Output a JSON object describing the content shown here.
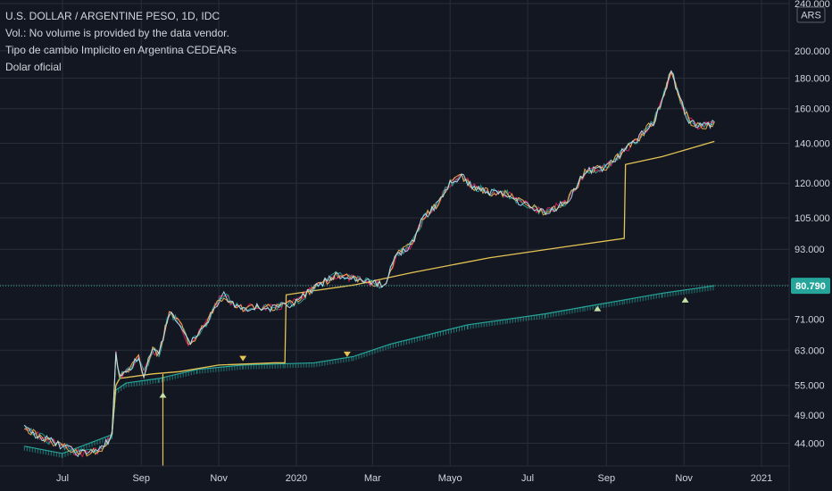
{
  "legend": {
    "title": "U.S. DOLLAR / ARGENTINE PESO, 1D, IDC",
    "volume_note": "Vol.: No volume is provided by the data vendor.",
    "indicator_1": "Tipo de cambio Implicito en Argentina CEDEARs",
    "indicator_2": "Dolar oficial"
  },
  "currency_badge": "ARS",
  "colors": {
    "background": "#131722",
    "grid": "#2a2e39",
    "text": "#d1d4dc",
    "official_line": "#e5c454",
    "implied_1": "#26a69a",
    "implied_2": "#e91e63",
    "implied_3": "#ffb74d",
    "implied_4": "#b3e5fc",
    "current_price": "#26a69a"
  },
  "chart_data": {
    "type": "line",
    "scale": "log",
    "ylim": [
      42,
      240
    ],
    "y_ticks": [
      {
        "value": 240,
        "label": "240.000"
      },
      {
        "value": 200,
        "label": "200.000"
      },
      {
        "value": 180,
        "label": "180.000"
      },
      {
        "value": 160,
        "label": "160.000"
      },
      {
        "value": 140,
        "label": "140.000"
      },
      {
        "value": 120,
        "label": "120.000"
      },
      {
        "value": 105,
        "label": "105.000"
      },
      {
        "value": 93,
        "label": "93.000"
      },
      {
        "value": 81,
        "label": "81.000"
      },
      {
        "value": 71,
        "label": "71.000"
      },
      {
        "value": 63,
        "label": "63.000"
      },
      {
        "value": 55,
        "label": "55.000"
      },
      {
        "value": 49,
        "label": "49.000"
      },
      {
        "value": 44,
        "label": "44.000"
      }
    ],
    "x_ticks": [
      {
        "label": "Jul",
        "date": "2019-07-01"
      },
      {
        "label": "Sep",
        "date": "2019-09-01"
      },
      {
        "label": "Nov",
        "date": "2019-11-01"
      },
      {
        "label": "2020",
        "date": "2020-01-01"
      },
      {
        "label": "Mar",
        "date": "2020-03-01"
      },
      {
        "label": "Mayo",
        "date": "2020-05-01"
      },
      {
        "label": "Jul",
        "date": "2020-07-01"
      },
      {
        "label": "Sep",
        "date": "2020-09-01"
      },
      {
        "label": "Nov",
        "date": "2020-11-01"
      },
      {
        "label": "2021",
        "date": "2021-01-01"
      }
    ],
    "current_price": {
      "label": "80.790",
      "value": 80.79
    },
    "series": [
      {
        "name": "Tipo de cambio Implicito en Argentina CEDEARs",
        "points": [
          [
            "2019-06-01",
            46.5
          ],
          [
            "2019-06-15",
            45.0
          ],
          [
            "2019-07-01",
            43.5
          ],
          [
            "2019-07-15",
            42.3
          ],
          [
            "2019-08-01",
            43.0
          ],
          [
            "2019-08-09",
            45.5
          ],
          [
            "2019-08-12",
            62.0
          ],
          [
            "2019-08-15",
            57.0
          ],
          [
            "2019-08-22",
            58.5
          ],
          [
            "2019-08-30",
            61.0
          ],
          [
            "2019-09-03",
            57.5
          ],
          [
            "2019-09-10",
            63.0
          ],
          [
            "2019-09-15",
            62.0
          ],
          [
            "2019-09-23",
            73.0
          ],
          [
            "2019-10-01",
            70.0
          ],
          [
            "2019-10-08",
            65.0
          ],
          [
            "2019-10-15",
            66.5
          ],
          [
            "2019-10-22",
            70.0
          ],
          [
            "2019-10-29",
            75.0
          ],
          [
            "2019-11-05",
            78.0
          ],
          [
            "2019-11-12",
            75.5
          ],
          [
            "2019-11-20",
            74.0
          ],
          [
            "2019-12-01",
            74.5
          ],
          [
            "2019-12-15",
            74.0
          ],
          [
            "2020-01-01",
            76.0
          ],
          [
            "2020-01-15",
            80.0
          ],
          [
            "2020-02-01",
            84.0
          ],
          [
            "2020-02-15",
            83.0
          ],
          [
            "2020-03-01",
            81.5
          ],
          [
            "2020-03-10",
            81.0
          ],
          [
            "2020-03-20",
            91.0
          ],
          [
            "2020-04-01",
            95.0
          ],
          [
            "2020-04-10",
            105.0
          ],
          [
            "2020-04-20",
            110.0
          ],
          [
            "2020-05-01",
            120.0
          ],
          [
            "2020-05-10",
            123.0
          ],
          [
            "2020-05-20",
            118.0
          ],
          [
            "2020-06-01",
            116.0
          ],
          [
            "2020-06-15",
            115.0
          ],
          [
            "2020-07-01",
            110.0
          ],
          [
            "2020-07-15",
            107.0
          ],
          [
            "2020-08-01",
            112.0
          ],
          [
            "2020-08-15",
            125.0
          ],
          [
            "2020-09-01",
            128.0
          ],
          [
            "2020-09-15",
            136.0
          ],
          [
            "2020-09-25",
            142.0
          ],
          [
            "2020-10-08",
            152.0
          ],
          [
            "2020-10-15",
            165.0
          ],
          [
            "2020-10-22",
            186.0
          ],
          [
            "2020-10-29",
            165.0
          ],
          [
            "2020-11-05",
            153.0
          ],
          [
            "2020-11-12",
            150.0
          ],
          [
            "2020-11-20",
            150.0
          ],
          [
            "2020-11-25",
            152.0
          ]
        ]
      },
      {
        "name": "Dolar oficial",
        "points": [
          [
            "2019-08-09",
            45.5
          ],
          [
            "2019-08-12",
            55.0
          ],
          [
            "2019-08-15",
            56.5
          ],
          [
            "2019-09-10",
            57.5
          ],
          [
            "2019-10-01",
            58.0
          ],
          [
            "2019-11-01",
            59.5
          ],
          [
            "2019-12-15",
            60.0
          ],
          [
            "2019-12-23",
            60.0
          ],
          [
            "2019-12-24",
            78.0
          ],
          [
            "2020-01-10",
            79.0
          ],
          [
            "2020-02-15",
            81.0
          ],
          [
            "2020-04-01",
            85.0
          ],
          [
            "2020-06-01",
            90.0
          ],
          [
            "2020-08-01",
            94.0
          ],
          [
            "2020-09-15",
            97.0
          ],
          [
            "2020-09-16",
            129.0
          ],
          [
            "2020-10-15",
            133.0
          ],
          [
            "2020-11-25",
            141.0
          ]
        ]
      },
      {
        "name": "U.S. DOLLAR / ARGENTINE PESO",
        "points": [
          [
            "2019-06-01",
            43.5
          ],
          [
            "2019-07-01",
            42.3
          ],
          [
            "2019-08-09",
            45.5
          ],
          [
            "2019-08-12",
            54.0
          ],
          [
            "2019-08-20",
            55.5
          ],
          [
            "2019-09-15",
            56.5
          ],
          [
            "2019-10-15",
            58.5
          ],
          [
            "2019-11-20",
            59.5
          ],
          [
            "2019-12-23",
            59.8
          ],
          [
            "2020-01-15",
            60.0
          ],
          [
            "2020-02-15",
            61.5
          ],
          [
            "2020-03-15",
            64.5
          ],
          [
            "2020-04-15",
            67.0
          ],
          [
            "2020-05-15",
            69.5
          ],
          [
            "2020-06-15",
            71.0
          ],
          [
            "2020-07-15",
            72.5
          ],
          [
            "2020-08-15",
            74.5
          ],
          [
            "2020-09-15",
            76.5
          ],
          [
            "2020-10-15",
            78.5
          ],
          [
            "2020-11-25",
            80.8
          ]
        ]
      }
    ],
    "markers": [
      {
        "shape": "down",
        "color": "#e5c454",
        "date": "2019-11-20",
        "value": 61.0
      },
      {
        "shape": "down",
        "color": "#e5c454",
        "date": "2020-02-10",
        "value": 62.0
      },
      {
        "shape": "up",
        "color": "#c5e1a5",
        "date": "2019-09-18",
        "value": 53.0
      },
      {
        "shape": "up",
        "color": "#c5e1a5",
        "date": "2020-08-25",
        "value": 74.0
      },
      {
        "shape": "up",
        "color": "#c5e1a5",
        "date": "2020-11-02",
        "value": 76.5
      }
    ]
  }
}
